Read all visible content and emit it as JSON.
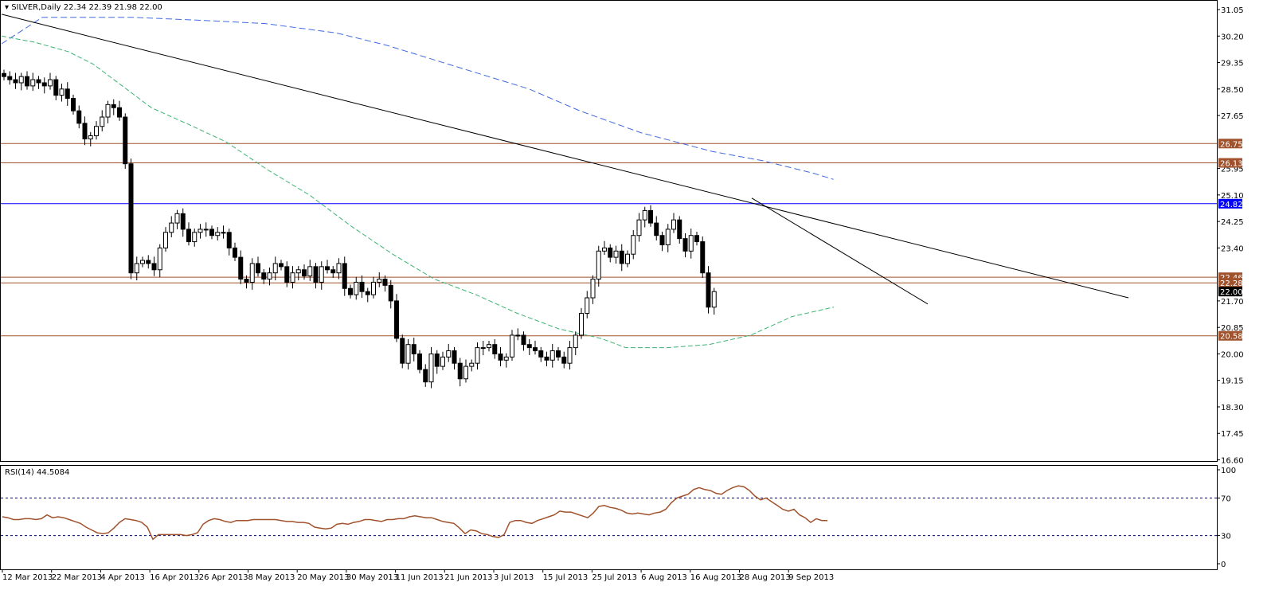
{
  "header": {
    "symbol": "SILVER,Daily",
    "ohlc": "22.34 22.39 21.98 22.00"
  },
  "rsi_header": "RSI(14) 44.5084",
  "colors": {
    "bull_fill": "#ffffff",
    "bear_fill": "#000000",
    "level_line": "#a0522d",
    "level_blue": "#0000ff",
    "ma_fast": "#3cb371",
    "ma_slow": "#4169e1",
    "rsi_line": "#a0522d",
    "rsi_guides": "#00008b",
    "label_fill": "#a0522d",
    "label_blue": "#0000ff",
    "current_label": "#000000"
  },
  "price_axis": {
    "ticks": [
      "31.05",
      "30.20",
      "29.35",
      "28.50",
      "27.65",
      "25.95",
      "25.10",
      "24.25",
      "23.40",
      "21.70",
      "20.85",
      "20.00",
      "19.15",
      "18.30",
      "17.45",
      "16.60"
    ]
  },
  "rsi_axis": {
    "ticks": [
      "100",
      "70",
      "30",
      "0"
    ]
  },
  "levels": [
    {
      "value": 26.75,
      "label": "26.75"
    },
    {
      "value": 26.13,
      "label": "26.13"
    },
    {
      "value": 24.82,
      "label": "24.82"
    },
    {
      "value": 22.46,
      "label": "22.46"
    },
    {
      "value": 22.28,
      "label": "22.28"
    },
    {
      "value": 20.58,
      "label": "20.58"
    }
  ],
  "current_price": {
    "value": 22.0,
    "label": "22.00"
  },
  "chart_data": [
    {
      "type": "candlestick",
      "title": "SILVER,Daily",
      "x_labels": [
        "12 Mar 2013",
        "22 Mar 2013",
        "4 Apr 2013",
        "16 Apr 2013",
        "26 Apr 2013",
        "8 May 2013",
        "20 May 2013",
        "30 May 2013",
        "11 Jun 2013",
        "21 Jun 2013",
        "3 Jul 2013",
        "15 Jul 2013",
        "25 Jul 2013",
        "6 Aug 2013",
        "16 Aug 2013",
        "28 Aug 2013",
        "9 Sep 2013"
      ],
      "ylim": [
        16.6,
        31.05
      ],
      "close_path": [
        28.9,
        28.8,
        28.7,
        28.9,
        28.6,
        28.8,
        28.7,
        28.6,
        28.8,
        28.3,
        28.5,
        28.2,
        27.8,
        27.4,
        26.9,
        27.0,
        27.3,
        27.6,
        28.0,
        27.9,
        27.6,
        26.1,
        22.6,
        22.9,
        23.0,
        22.9,
        22.7,
        23.4,
        23.9,
        24.2,
        24.5,
        24.0,
        23.6,
        23.9,
        24.0,
        24.0,
        23.8,
        23.9,
        23.9,
        23.4,
        23.1,
        22.4,
        22.3,
        22.9,
        22.6,
        22.4,
        22.6,
        22.9,
        22.8,
        22.3,
        22.6,
        22.7,
        22.5,
        22.8,
        22.3,
        22.8,
        22.7,
        22.6,
        22.9,
        22.1,
        21.9,
        22.3,
        22.0,
        21.9,
        22.3,
        22.4,
        22.2,
        21.7,
        20.5,
        19.7,
        20.3,
        20.0,
        19.5,
        19.1,
        20.0,
        19.6,
        19.9,
        20.1,
        19.7,
        19.2,
        19.6,
        19.7,
        20.2,
        20.2,
        20.3,
        20.0,
        19.8,
        19.9,
        20.6,
        20.6,
        20.3,
        20.2,
        20.1,
        19.9,
        19.8,
        20.1,
        19.9,
        19.7,
        20.2,
        20.6,
        21.3,
        21.8,
        22.4,
        23.3,
        23.4,
        23.1,
        23.3,
        22.9,
        23.2,
        23.8,
        24.3,
        24.6,
        24.2,
        23.8,
        23.5,
        24.0,
        24.3,
        23.7,
        23.3,
        23.8,
        23.6,
        22.6,
        21.5,
        22.0
      ],
      "moving_average_fast": {
        "ylim": [
          20.0,
          30.8
        ]
      },
      "moving_average_slow": {
        "ylim": [
          25.7,
          31.0
        ]
      },
      "trendlines": [
        {
          "from": [
            "12 Mar 2013",
            30.9
          ],
          "to": [
            "7 Oct 2013",
            21.8
          ]
        },
        {
          "from": [
            "28 Aug 2013",
            25.0
          ],
          "to": [
            "24 Sep 2013",
            21.6
          ]
        }
      ]
    },
    {
      "type": "line",
      "title": "RSI(14) 44.5084",
      "ylim": [
        0,
        100
      ],
      "guides": [
        70,
        30
      ],
      "values": [
        50,
        49,
        47,
        47,
        48,
        48,
        47,
        48,
        52,
        49,
        50,
        49,
        47,
        45,
        43,
        39,
        36,
        33,
        32,
        33,
        38,
        44,
        48,
        47,
        46,
        44,
        39,
        26,
        31,
        31,
        31,
        31,
        31,
        30,
        31,
        33,
        42,
        46,
        48,
        47,
        45,
        44,
        46,
        46,
        46,
        47,
        47,
        47,
        47,
        47,
        46,
        45,
        45,
        44,
        44,
        43,
        39,
        38,
        37,
        38,
        42,
        43,
        42,
        44,
        45,
        47,
        47,
        46,
        45,
        47,
        47,
        48,
        48,
        50,
        51,
        50,
        49,
        49,
        47,
        45,
        44,
        43,
        38,
        32,
        36,
        35,
        32,
        31,
        29,
        28,
        31,
        44,
        46,
        46,
        44,
        43,
        46,
        48,
        50,
        52,
        56,
        55,
        55,
        53,
        51,
        49,
        54,
        61,
        62,
        60,
        59,
        57,
        54,
        53,
        54,
        53,
        52,
        54,
        55,
        58,
        65,
        70,
        72,
        74,
        79,
        81,
        79,
        78,
        75,
        74,
        78,
        81,
        83,
        82,
        78,
        72,
        68,
        70,
        66,
        62,
        58,
        56,
        58,
        52,
        49,
        44,
        48,
        46,
        46
      ]
    }
  ]
}
